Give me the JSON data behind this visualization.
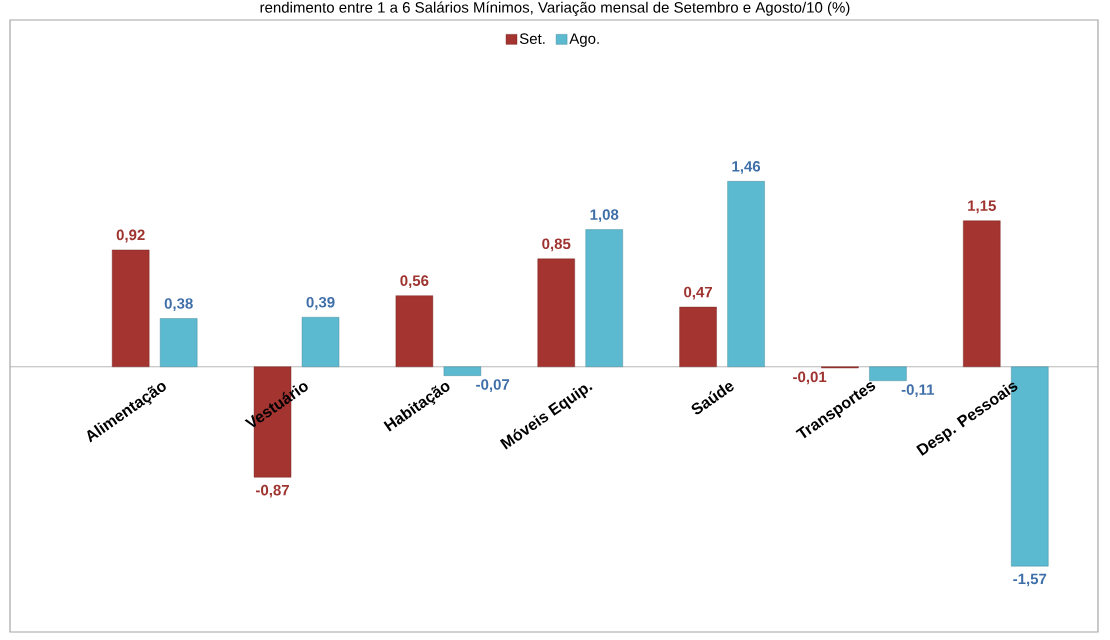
{
  "chart_data": {
    "type": "bar",
    "title": "rendimento entre 1 a 6 Salários Mínimos, Variação mensal de Setembro e Agosto/10 (%)",
    "categories": [
      "Alimentação",
      "Vestuário",
      "Habitação",
      "Móveis Equip.",
      "Saúde",
      "Transportes",
      "Desp. Pessoais"
    ],
    "series": [
      {
        "name": "Set.",
        "color": "#a33430",
        "values": [
          0.92,
          -0.87,
          0.56,
          0.85,
          0.47,
          -0.01,
          1.15
        ],
        "value_labels": [
          "0,92",
          "-0,87",
          "0,56",
          "0,85",
          "0,47",
          "-0,01",
          "1,15"
        ]
      },
      {
        "name": "Ago.",
        "color": "#5bb9d0",
        "values": [
          0.38,
          0.39,
          -0.07,
          1.08,
          1.46,
          -0.11,
          -1.57
        ],
        "value_labels": [
          "0,38",
          "0,39",
          "-0,07",
          "1,08",
          "1,46",
          "-0,11",
          "-1,57"
        ]
      }
    ],
    "legend": "top"
  }
}
